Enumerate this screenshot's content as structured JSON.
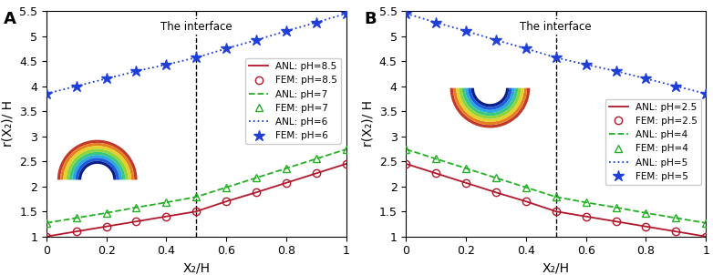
{
  "chart_data": [
    {
      "type": "line",
      "panel_label": "A",
      "xlabel": "X₂/H",
      "ylabel": "r(X₂)/ H",
      "annotation": {
        "text": "The interface",
        "x": 0.5
      },
      "x": [
        0,
        0.1,
        0.2,
        0.3,
        0.4,
        0.5,
        0.6,
        0.7,
        0.8,
        0.9,
        1.0
      ],
      "xlim": [
        0,
        1
      ],
      "xticks": [
        0,
        0.2,
        0.4,
        0.6,
        0.8,
        1
      ],
      "ylim": [
        1,
        5.5
      ],
      "yticks": [
        1,
        1.5,
        2,
        2.5,
        3,
        3.5,
        4,
        4.5,
        5,
        5.5
      ],
      "grid": false,
      "legend": "center right",
      "series": [
        {
          "name": "ANL: pH=8.5",
          "type": "line",
          "color": "#b2182b",
          "line_style": "solid",
          "values": [
            1.0,
            1.1,
            1.2,
            1.3,
            1.4,
            1.5,
            1.7,
            1.88,
            2.07,
            2.26,
            2.45
          ]
        },
        {
          "name": "FEM: pH=8.5",
          "type": "scatter",
          "color": "#b2182b",
          "marker": "circle",
          "values": [
            1.0,
            1.1,
            1.2,
            1.3,
            1.4,
            1.5,
            1.7,
            1.88,
            2.07,
            2.26,
            2.45
          ]
        },
        {
          "name": "ANL: pH=7",
          "type": "line",
          "color": "#22b022",
          "line_style": "dashed",
          "values": [
            1.27,
            1.37,
            1.47,
            1.58,
            1.68,
            1.79,
            1.98,
            2.17,
            2.36,
            2.55,
            2.74
          ]
        },
        {
          "name": "FEM: pH=7",
          "type": "scatter",
          "color": "#22b022",
          "marker": "triangle",
          "values": [
            1.27,
            1.37,
            1.47,
            1.58,
            1.68,
            1.79,
            1.98,
            2.17,
            2.36,
            2.55,
            2.74
          ]
        },
        {
          "name": "ANL: pH=6",
          "type": "line",
          "color": "#1f3fd6",
          "line_style": "dotted",
          "values": [
            3.85,
            4.0,
            4.15,
            4.3,
            4.43,
            4.57,
            4.75,
            4.92,
            5.1,
            5.27,
            5.45
          ]
        },
        {
          "name": "FEM: pH=6",
          "type": "scatter",
          "color": "#1f3fd6",
          "marker": "star",
          "values": [
            3.85,
            4.0,
            4.15,
            4.3,
            4.43,
            4.57,
            4.75,
            4.92,
            5.1,
            5.27,
            5.45
          ]
        }
      ]
    },
    {
      "type": "line",
      "panel_label": "B",
      "xlabel": "X₂/H",
      "ylabel": "r(X₂)/ H",
      "annotation": {
        "text": "The interface",
        "x": 0.5
      },
      "x": [
        0,
        0.1,
        0.2,
        0.3,
        0.4,
        0.5,
        0.6,
        0.7,
        0.8,
        0.9,
        1.0
      ],
      "xlim": [
        0,
        1
      ],
      "xticks": [
        0,
        0.2,
        0.4,
        0.6,
        0.8,
        1
      ],
      "ylim": [
        1,
        5.5
      ],
      "yticks": [
        1,
        1.5,
        2,
        2.5,
        3,
        3.5,
        4,
        4.5,
        5,
        5.5
      ],
      "grid": false,
      "legend": "center right",
      "series": [
        {
          "name": "ANL: pH=2.5",
          "type": "line",
          "color": "#b2182b",
          "line_style": "solid",
          "values": [
            2.45,
            2.26,
            2.07,
            1.88,
            1.7,
            1.5,
            1.4,
            1.3,
            1.2,
            1.1,
            1.0
          ]
        },
        {
          "name": "FEM: pH=2.5",
          "type": "scatter",
          "color": "#b2182b",
          "marker": "circle",
          "values": [
            2.45,
            2.26,
            2.07,
            1.88,
            1.7,
            1.5,
            1.4,
            1.3,
            1.2,
            1.1,
            1.0
          ]
        },
        {
          "name": "ANL: pH=4",
          "type": "line",
          "color": "#22b022",
          "line_style": "dashed",
          "values": [
            2.74,
            2.55,
            2.36,
            2.17,
            1.98,
            1.79,
            1.68,
            1.58,
            1.47,
            1.37,
            1.27
          ]
        },
        {
          "name": "FEM: pH=4",
          "type": "scatter",
          "color": "#22b022",
          "marker": "triangle",
          "values": [
            2.74,
            2.55,
            2.36,
            2.17,
            1.98,
            1.79,
            1.68,
            1.58,
            1.47,
            1.37,
            1.27
          ]
        },
        {
          "name": "ANL: pH=5",
          "type": "line",
          "color": "#1f3fd6",
          "line_style": "dotted",
          "values": [
            5.45,
            5.27,
            5.1,
            4.92,
            4.75,
            4.57,
            4.43,
            4.3,
            4.15,
            4.0,
            3.85
          ]
        },
        {
          "name": "FEM: pH=5",
          "type": "scatter",
          "color": "#1f3fd6",
          "marker": "star",
          "values": [
            5.45,
            5.27,
            5.1,
            4.92,
            4.75,
            4.57,
            4.43,
            4.3,
            4.15,
            4.0,
            3.85
          ]
        }
      ]
    }
  ]
}
